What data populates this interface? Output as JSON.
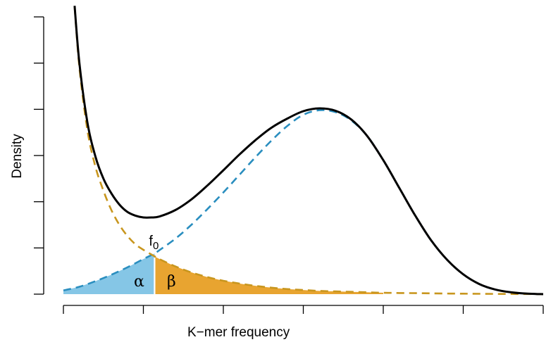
{
  "chart_data": {
    "type": "line",
    "xlabel": "K−mer frequency",
    "ylabel": "Density",
    "xlim": [
      0,
      6
    ],
    "ylim": [
      0,
      6
    ],
    "x_ticks": [
      0,
      1,
      2,
      3,
      4,
      5,
      6
    ],
    "y_ticks": [
      0,
      1,
      2,
      3,
      4,
      5,
      6
    ],
    "x_tick_labels_shown": false,
    "y_tick_labels_shown": false,
    "grid": false,
    "legend": "none",
    "threshold_x": 1.14,
    "series": [
      {
        "style": "solid",
        "color": "#000000",
        "x": [
          0.14,
          0.2,
          0.3,
          0.4,
          0.5,
          0.6,
          0.7,
          0.8,
          0.9,
          1.0,
          1.1,
          1.2,
          1.4,
          1.6,
          1.8,
          2.0,
          2.2,
          2.4,
          2.6,
          2.8,
          3.0,
          3.2,
          3.4,
          3.6,
          3.8,
          4.0,
          4.2,
          4.4,
          4.6,
          4.8,
          5.0,
          5.2,
          5.4,
          5.6,
          5.8,
          6.0
        ],
        "y": [
          6.24,
          5.0,
          3.72,
          2.98,
          2.5,
          2.18,
          1.94,
          1.78,
          1.7,
          1.66,
          1.66,
          1.68,
          1.82,
          2.05,
          2.35,
          2.68,
          3.02,
          3.33,
          3.6,
          3.8,
          3.96,
          4.02,
          3.97,
          3.78,
          3.42,
          2.9,
          2.3,
          1.7,
          1.16,
          0.74,
          0.43,
          0.22,
          0.1,
          0.04,
          0.01,
          0.0
        ]
      },
      {
        "style": "dashed",
        "color": "#2a8ebf",
        "x": [
          0.0,
          0.2,
          0.4,
          0.6,
          0.8,
          1.0,
          1.14,
          1.2,
          1.4,
          1.6,
          1.8,
          2.0,
          2.2,
          2.4,
          2.6,
          2.8,
          3.0,
          3.2,
          3.4,
          3.6,
          3.8,
          4.0,
          4.2,
          4.4,
          4.6,
          4.8,
          5.0,
          5.2,
          5.4,
          5.6,
          5.8,
          6.0
        ],
        "y": [
          0.08,
          0.16,
          0.28,
          0.42,
          0.58,
          0.76,
          0.88,
          0.95,
          1.2,
          1.5,
          1.84,
          2.2,
          2.58,
          2.96,
          3.32,
          3.64,
          3.88,
          3.98,
          3.94,
          3.76,
          3.42,
          2.9,
          2.3,
          1.7,
          1.16,
          0.74,
          0.43,
          0.22,
          0.1,
          0.04,
          0.01,
          0.0
        ]
      },
      {
        "style": "dashed",
        "color": "#c8961e",
        "x": [
          0.14,
          0.2,
          0.3,
          0.4,
          0.5,
          0.6,
          0.7,
          0.8,
          0.9,
          1.0,
          1.14,
          1.2,
          1.4,
          1.6,
          1.8,
          2.0,
          2.2,
          2.4,
          2.6,
          2.8,
          3.0,
          3.2,
          3.4,
          3.6,
          3.8,
          4.0,
          4.2,
          4.5,
          5.0,
          5.5,
          6.0
        ],
        "y": [
          6.22,
          4.9,
          3.55,
          2.76,
          2.24,
          1.82,
          1.5,
          1.26,
          1.08,
          0.96,
          0.82,
          0.76,
          0.6,
          0.47,
          0.37,
          0.29,
          0.23,
          0.18,
          0.14,
          0.11,
          0.09,
          0.07,
          0.06,
          0.05,
          0.04,
          0.03,
          0.025,
          0.02,
          0.01,
          0.005,
          0.0
        ]
      }
    ],
    "areas": [
      {
        "label": "α",
        "color": "#85c6e6",
        "under_series": 1,
        "x_from": 0.0,
        "x_to": 1.14
      },
      {
        "label": "β",
        "color": "#e8a430",
        "under_series": 2,
        "x_from": 1.14,
        "x_to": 4.0
      }
    ],
    "annotations": [
      {
        "text": "f",
        "subscript": "0",
        "x": 1.14,
        "y": 0.9
      }
    ]
  }
}
